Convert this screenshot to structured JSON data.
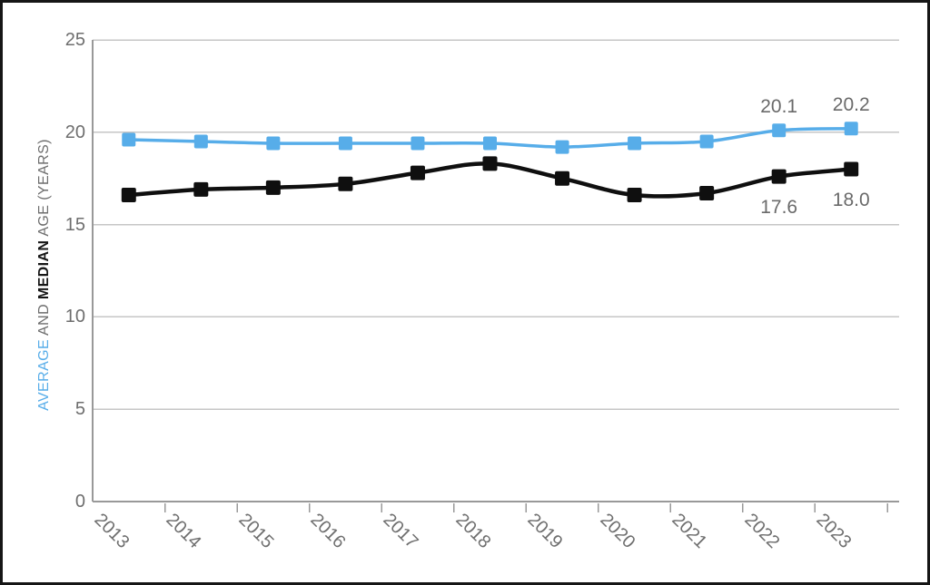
{
  "chart_data": {
    "type": "line",
    "title": "",
    "ylabel_segments": [
      {
        "text": "AVERAGE",
        "color": "#57ade9",
        "bold": false
      },
      {
        "text": " AND ",
        "color": "#6e6e6e",
        "bold": false
      },
      {
        "text": "MEDIAN",
        "color": "#161616",
        "bold": true
      },
      {
        "text": " AGE (YEARS)",
        "color": "#6e6e6e",
        "bold": false
      }
    ],
    "categories": [
      "2013",
      "2014",
      "2015",
      "2016",
      "2017",
      "2018",
      "2019",
      "2020",
      "2021",
      "2022",
      "2023"
    ],
    "series": [
      {
        "name": "average",
        "color": "#57ade9",
        "line_width": 3.5,
        "marker": "square",
        "marker_size": 15,
        "values": [
          19.6,
          19.5,
          19.4,
          19.4,
          19.4,
          19.4,
          19.2,
          19.4,
          19.5,
          20.1,
          20.2
        ]
      },
      {
        "name": "median",
        "color": "#0f0f0f",
        "line_width": 4.5,
        "marker": "square",
        "marker_size": 16,
        "values": [
          16.6,
          16.9,
          17.0,
          17.2,
          17.8,
          18.3,
          17.5,
          16.6,
          16.7,
          17.6,
          18.0
        ]
      }
    ],
    "annotations": [
      {
        "text": "20.1",
        "series": "average",
        "category": "2022",
        "placement": "above"
      },
      {
        "text": "20.2",
        "series": "average",
        "category": "2023",
        "placement": "above"
      },
      {
        "text": "17.6",
        "series": "median",
        "category": "2022",
        "placement": "below"
      },
      {
        "text": "18.0",
        "series": "median",
        "category": "2023",
        "placement": "below"
      }
    ],
    "yticks": [
      0,
      5,
      10,
      15,
      20,
      25
    ],
    "ylim": [
      0,
      25
    ],
    "grid": true,
    "legend": "none",
    "colors": {
      "grid": "#c6c6c6",
      "axis": "#999999",
      "tick_label": "#6e6e6e",
      "annotation": "#6a6a6a",
      "frame_border": "#161616",
      "background": "#ffffff"
    }
  }
}
